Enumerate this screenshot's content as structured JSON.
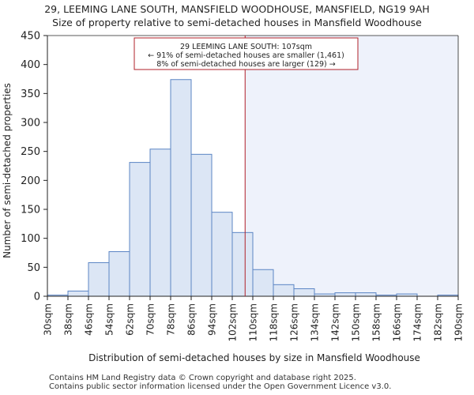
{
  "chart_data": {
    "type": "bar",
    "title": "29, LEEMING LANE SOUTH, MANSFIELD WOODHOUSE, MANSFIELD, NG19 9AH",
    "subtitle": "Size of property relative to semi-detached houses in Mansfield Woodhouse",
    "xlabel": "Distribution of semi-detached houses by size in Mansfield Woodhouse",
    "ylabel": "Number of semi-detached properties",
    "bin_edges": [
      30,
      38,
      46,
      54,
      62,
      70,
      78,
      86,
      94,
      102,
      110,
      118,
      126,
      134,
      142,
      150,
      158,
      166,
      174,
      182,
      190
    ],
    "tick_labels": [
      "30sqm",
      "38sqm",
      "46sqm",
      "54sqm",
      "62sqm",
      "70sqm",
      "78sqm",
      "86sqm",
      "94sqm",
      "102sqm",
      "110sqm",
      "118sqm",
      "126sqm",
      "134sqm",
      "142sqm",
      "150sqm",
      "158sqm",
      "166sqm",
      "174sqm",
      "182sqm",
      "190sqm"
    ],
    "values": [
      2,
      9,
      58,
      77,
      231,
      254,
      374,
      245,
      145,
      110,
      46,
      20,
      13,
      4,
      6,
      6,
      2,
      4,
      0,
      2
    ],
    "ylim": [
      0,
      450
    ],
    "yticks": [
      0,
      50,
      100,
      150,
      200,
      250,
      300,
      350,
      400,
      450
    ],
    "marker_value": 107,
    "annotation": {
      "line1": "29 LEEMING LANE SOUTH: 107sqm",
      "line2": "← 91% of semi-detached houses are smaller (1,461)",
      "line3": "8% of semi-detached houses are larger (129) →"
    },
    "colors": {
      "bar_fill": "#dce6f5",
      "bar_stroke": "#5b85c4",
      "marker": "#b0202a",
      "highlight_region": "#eef2fb"
    }
  },
  "footer": {
    "line1": "Contains HM Land Registry data © Crown copyright and database right 2025.",
    "line2": "Contains public sector information licensed under the Open Government Licence v3.0."
  }
}
